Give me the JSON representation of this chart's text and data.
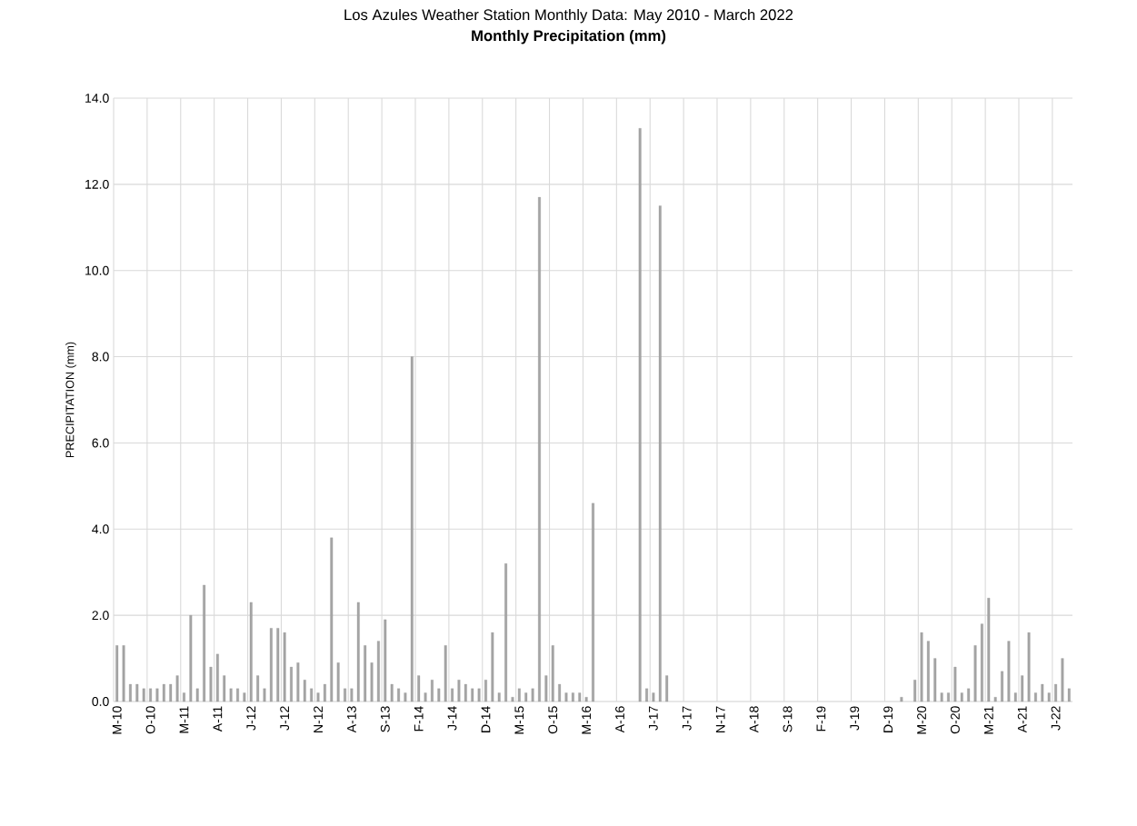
{
  "chart_data": {
    "type": "bar",
    "title": "Los Azules Weather Station Monthly Data: May 2010 - March 2022",
    "subtitle": "Monthly Precipitation (mm)",
    "ylabel": "PRECIPITATION (mm)",
    "categories": [
      "M-10",
      null,
      null,
      null,
      null,
      "O-10",
      null,
      null,
      null,
      null,
      "M-11",
      null,
      null,
      null,
      null,
      "A-11",
      null,
      null,
      null,
      null,
      "J-12",
      null,
      null,
      null,
      null,
      "J-12",
      null,
      null,
      null,
      null,
      "N-12",
      null,
      null,
      null,
      null,
      "A-13",
      null,
      null,
      null,
      null,
      "S-13",
      null,
      null,
      null,
      null,
      "F-14",
      null,
      null,
      null,
      null,
      "J-14",
      null,
      null,
      null,
      null,
      "D-14",
      null,
      null,
      null,
      null,
      "M-15",
      null,
      null,
      null,
      null,
      "O-15",
      null,
      null,
      null,
      null,
      "M-16",
      null,
      null,
      null,
      null,
      "A-16",
      null,
      null,
      null,
      null,
      "J-17",
      null,
      null,
      null,
      null,
      "J-17",
      null,
      null,
      null,
      null,
      "N-17",
      null,
      null,
      null,
      null,
      "A-18",
      null,
      null,
      null,
      null,
      "S-18",
      null,
      null,
      null,
      null,
      "F-19",
      null,
      null,
      null,
      null,
      "J-19",
      null,
      null,
      null,
      null,
      "D-19",
      null,
      null,
      null,
      null,
      "M-20",
      null,
      null,
      null,
      null,
      "O-20",
      null,
      null,
      null,
      null,
      "M-21",
      null,
      null,
      null,
      null,
      "A-21",
      null,
      null,
      null,
      null,
      "J-22",
      null,
      null
    ],
    "values": [
      1.3,
      1.3,
      0.4,
      0.4,
      0.3,
      0.3,
      0.3,
      0.4,
      0.4,
      0.6,
      0.2,
      2.0,
      0.3,
      2.7,
      0.8,
      1.1,
      0.6,
      0.3,
      0.3,
      0.2,
      2.3,
      0.6,
      0.3,
      1.7,
      1.7,
      1.6,
      0.8,
      0.9,
      0.5,
      0.3,
      0.2,
      0.4,
      3.8,
      0.9,
      0.3,
      0.3,
      2.3,
      1.3,
      0.9,
      1.4,
      1.9,
      0.4,
      0.3,
      0.2,
      8.0,
      0.6,
      0.2,
      0.5,
      0.3,
      1.3,
      0.3,
      0.5,
      0.4,
      0.3,
      0.3,
      0.5,
      1.6,
      0.2,
      3.2,
      0.1,
      0.3,
      0.2,
      0.3,
      11.7,
      0.6,
      1.3,
      0.4,
      0.2,
      0.2,
      0.2,
      0.1,
      4.6,
      null,
      null,
      null,
      null,
      null,
      null,
      13.3,
      0.3,
      0.2,
      11.5,
      0.6,
      null,
      null,
      null,
      null,
      null,
      null,
      null,
      null,
      null,
      null,
      null,
      null,
      null,
      null,
      null,
      null,
      null,
      null,
      null,
      null,
      null,
      null,
      null,
      null,
      null,
      null,
      null,
      null,
      null,
      null,
      null,
      null,
      null,
      null,
      0.1,
      null,
      0.5,
      1.6,
      1.4,
      1.0,
      0.2,
      0.2,
      0.8,
      0.2,
      0.3,
      1.3,
      1.8,
      2.4,
      0.1,
      0.7,
      1.4,
      0.2,
      0.6,
      1.6,
      0.2,
      0.4,
      0.2,
      0.4,
      1.0,
      0.3
    ],
    "color": "#a5a5a5",
    "ylim": [
      0,
      14
    ],
    "yticks": [
      {
        "value": 0,
        "label": "0.0"
      },
      {
        "value": 2,
        "label": "2.0"
      },
      {
        "value": 4,
        "label": "4.0"
      },
      {
        "value": 6,
        "label": "6.0"
      },
      {
        "value": 8,
        "label": "8.0"
      },
      {
        "value": 10,
        "label": "10.0"
      },
      {
        "value": 12,
        "label": "12.0"
      },
      {
        "value": 14,
        "label": "14.0"
      }
    ],
    "grid": true
  }
}
